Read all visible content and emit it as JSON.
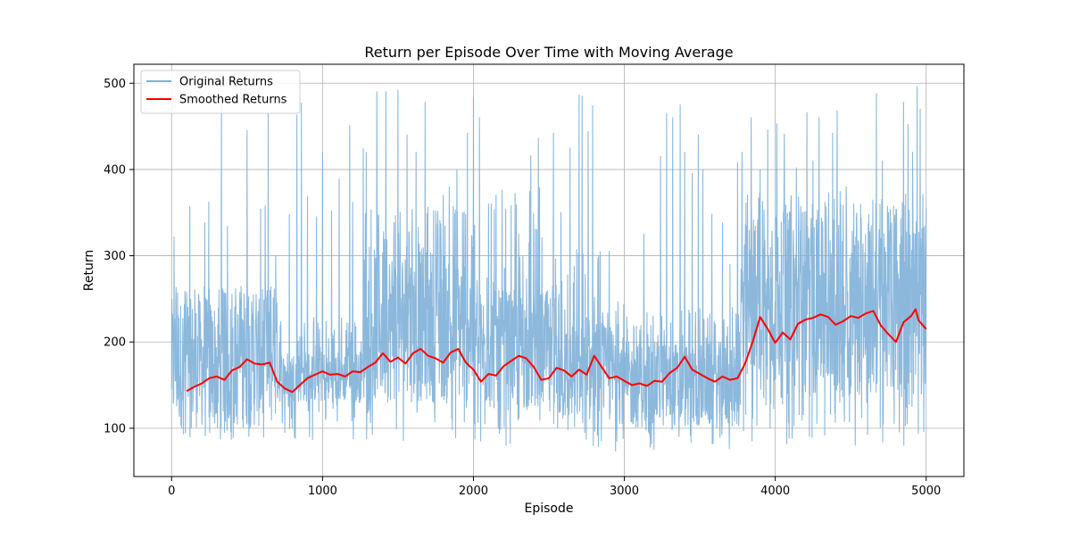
{
  "chart_data": {
    "type": "line",
    "title": "Return per Episode Over Time with Moving Average",
    "xlabel": "Episode",
    "ylabel": "Return",
    "xlim": [
      -250,
      5250
    ],
    "ylim": [
      44,
      522
    ],
    "xticks": [
      0,
      1000,
      2000,
      3000,
      4000,
      5000
    ],
    "yticks": [
      100,
      200,
      300,
      400,
      500
    ],
    "grid": true,
    "legend_position": "upper-left",
    "series": [
      {
        "name": "Original Returns",
        "color": "#7fb0d8",
        "style": "dense-noisy-line",
        "x_range": [
          0,
          5000
        ],
        "segments": [
          {
            "x_start": 0,
            "x_end": 700,
            "low": 85,
            "high": 265,
            "typical_low": 100,
            "typical_high": 250
          },
          {
            "x_start": 700,
            "x_end": 1270,
            "low": 85,
            "high": 230,
            "typical_low": 130,
            "typical_high": 190
          },
          {
            "x_start": 1270,
            "x_end": 2000,
            "low": 85,
            "high": 360,
            "typical_low": 130,
            "typical_high": 310
          },
          {
            "x_start": 2000,
            "x_end": 2500,
            "low": 80,
            "high": 380,
            "typical_low": 120,
            "typical_high": 260
          },
          {
            "x_start": 2500,
            "x_end": 3000,
            "low": 70,
            "high": 310,
            "typical_low": 105,
            "typical_high": 220
          },
          {
            "x_start": 3000,
            "x_end": 3770,
            "low": 75,
            "high": 240,
            "typical_low": 100,
            "typical_high": 200
          },
          {
            "x_start": 3770,
            "x_end": 5000,
            "low": 80,
            "high": 375,
            "typical_low": 135,
            "typical_high": 340
          }
        ],
        "spikes": [
          [
            15,
            322
          ],
          [
            28,
            253
          ],
          [
            90,
            249
          ],
          [
            120,
            357
          ],
          [
            180,
            255
          ],
          [
            220,
            338
          ],
          [
            245,
            362
          ],
          [
            330,
            478
          ],
          [
            370,
            334
          ],
          [
            400,
            255
          ],
          [
            455,
            249
          ],
          [
            500,
            445
          ],
          [
            560,
            255
          ],
          [
            590,
            354
          ],
          [
            620,
            358
          ],
          [
            640,
            466
          ],
          [
            690,
            300
          ],
          [
            780,
            348
          ],
          [
            830,
            463
          ],
          [
            860,
            477
          ],
          [
            900,
            368
          ],
          [
            960,
            345
          ],
          [
            1000,
            420
          ],
          [
            1060,
            352
          ],
          [
            1110,
            389
          ],
          [
            1180,
            451
          ],
          [
            1200,
            362
          ],
          [
            1270,
            424
          ],
          [
            1290,
            420
          ],
          [
            1310,
            310
          ],
          [
            1360,
            490
          ],
          [
            1420,
            490
          ],
          [
            1500,
            492
          ],
          [
            1560,
            440
          ],
          [
            1620,
            420
          ],
          [
            1680,
            478
          ],
          [
            1750,
            352
          ],
          [
            1800,
            370
          ],
          [
            1840,
            380
          ],
          [
            1890,
            400
          ],
          [
            1960,
            442
          ],
          [
            2000,
            484
          ],
          [
            2040,
            460
          ],
          [
            2100,
            360
          ],
          [
            2150,
            370
          ],
          [
            2190,
            376
          ],
          [
            2250,
            358
          ],
          [
            2300,
            325
          ],
          [
            2380,
            416
          ],
          [
            2430,
            436
          ],
          [
            2530,
            442
          ],
          [
            2580,
            350
          ],
          [
            2640,
            425
          ],
          [
            2700,
            486
          ],
          [
            2720,
            485
          ],
          [
            2760,
            444
          ],
          [
            2790,
            474
          ],
          [
            2830,
            300
          ],
          [
            2900,
            305
          ],
          [
            2960,
            220
          ],
          [
            3020,
            215
          ],
          [
            3080,
            218
          ],
          [
            3130,
            325
          ],
          [
            3190,
            230
          ],
          [
            3240,
            415
          ],
          [
            3280,
            465
          ],
          [
            3320,
            460
          ],
          [
            3370,
            475
          ],
          [
            3400,
            420
          ],
          [
            3450,
            395
          ],
          [
            3490,
            440
          ],
          [
            3520,
            400
          ],
          [
            3580,
            348
          ],
          [
            3650,
            338
          ],
          [
            3700,
            290
          ],
          [
            3750,
            408
          ],
          [
            3780,
            420
          ],
          [
            3840,
            460
          ],
          [
            3900,
            400
          ],
          [
            3950,
            446
          ],
          [
            4010,
            453
          ],
          [
            4060,
            441
          ],
          [
            4100,
            350
          ],
          [
            4140,
            402
          ],
          [
            4180,
            350
          ],
          [
            4210,
            466
          ],
          [
            4250,
            410
          ],
          [
            4290,
            460
          ],
          [
            4330,
            362
          ],
          [
            4380,
            442
          ],
          [
            4410,
            468
          ],
          [
            4470,
            380
          ],
          [
            4520,
            360
          ],
          [
            4570,
            344
          ],
          [
            4620,
            348
          ],
          [
            4670,
            488
          ],
          [
            4710,
            410
          ],
          [
            4750,
            350
          ],
          [
            4800,
            354
          ],
          [
            4850,
            478
          ],
          [
            4880,
            452
          ],
          [
            4910,
            420
          ],
          [
            4940,
            496
          ],
          [
            4960,
            470
          ],
          [
            5000,
            355
          ]
        ]
      },
      {
        "name": "Smoothed Returns",
        "color": "#ff0000",
        "style": "line",
        "points": [
          [
            100,
            143
          ],
          [
            150,
            148
          ],
          [
            200,
            152
          ],
          [
            250,
            158
          ],
          [
            300,
            160
          ],
          [
            350,
            156
          ],
          [
            400,
            167
          ],
          [
            450,
            171
          ],
          [
            500,
            180
          ],
          [
            550,
            175
          ],
          [
            600,
            174
          ],
          [
            650,
            176
          ],
          [
            700,
            154
          ],
          [
            750,
            146
          ],
          [
            800,
            142
          ],
          [
            850,
            150
          ],
          [
            900,
            158
          ],
          [
            950,
            162
          ],
          [
            1000,
            166
          ],
          [
            1050,
            162
          ],
          [
            1100,
            163
          ],
          [
            1150,
            160
          ],
          [
            1200,
            166
          ],
          [
            1250,
            165
          ],
          [
            1300,
            171
          ],
          [
            1350,
            176
          ],
          [
            1400,
            187
          ],
          [
            1450,
            177
          ],
          [
            1500,
            182
          ],
          [
            1550,
            175
          ],
          [
            1600,
            187
          ],
          [
            1650,
            192
          ],
          [
            1700,
            184
          ],
          [
            1750,
            181
          ],
          [
            1800,
            176
          ],
          [
            1850,
            188
          ],
          [
            1900,
            192
          ],
          [
            1950,
            176
          ],
          [
            2000,
            168
          ],
          [
            2050,
            154
          ],
          [
            2100,
            163
          ],
          [
            2150,
            161
          ],
          [
            2200,
            172
          ],
          [
            2250,
            178
          ],
          [
            2300,
            184
          ],
          [
            2350,
            181
          ],
          [
            2400,
            171
          ],
          [
            2450,
            156
          ],
          [
            2500,
            158
          ],
          [
            2550,
            170
          ],
          [
            2600,
            167
          ],
          [
            2650,
            160
          ],
          [
            2700,
            168
          ],
          [
            2750,
            162
          ],
          [
            2800,
            184
          ],
          [
            2850,
            171
          ],
          [
            2900,
            158
          ],
          [
            2950,
            160
          ],
          [
            3000,
            155
          ],
          [
            3050,
            150
          ],
          [
            3100,
            152
          ],
          [
            3150,
            149
          ],
          [
            3200,
            155
          ],
          [
            3250,
            154
          ],
          [
            3300,
            164
          ],
          [
            3350,
            170
          ],
          [
            3400,
            183
          ],
          [
            3450,
            168
          ],
          [
            3500,
            163
          ],
          [
            3550,
            158
          ],
          [
            3600,
            154
          ],
          [
            3650,
            160
          ],
          [
            3700,
            156
          ],
          [
            3750,
            158
          ],
          [
            3800,
            175
          ],
          [
            3850,
            200
          ],
          [
            3900,
            229
          ],
          [
            3950,
            215
          ],
          [
            4000,
            199
          ],
          [
            4050,
            211
          ],
          [
            4100,
            203
          ],
          [
            4150,
            221
          ],
          [
            4200,
            226
          ],
          [
            4250,
            228
          ],
          [
            4300,
            232
          ],
          [
            4350,
            229
          ],
          [
            4400,
            220
          ],
          [
            4450,
            224
          ],
          [
            4500,
            230
          ],
          [
            4550,
            228
          ],
          [
            4600,
            233
          ],
          [
            4650,
            236
          ],
          [
            4700,
            219
          ],
          [
            4750,
            209
          ],
          [
            4800,
            200
          ],
          [
            4850,
            223
          ],
          [
            4900,
            230
          ],
          [
            4930,
            238
          ],
          [
            4950,
            225
          ],
          [
            5000,
            215
          ]
        ]
      }
    ]
  }
}
